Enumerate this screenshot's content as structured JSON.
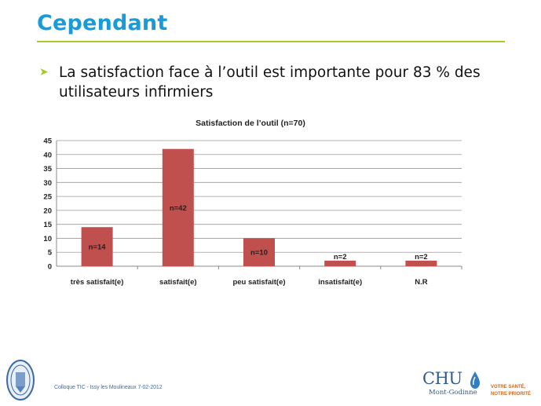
{
  "slide": {
    "title": "Cependant",
    "bullet": "La satisfaction face à l’outil est importante pour 83 % des utilisateurs infirmiers"
  },
  "chart_data": {
    "type": "bar",
    "title": "Satisfaction de l’outil (n=70)",
    "categories": [
      "très satisfait(e)",
      "satisfait(e)",
      "peu satisfait(e)",
      "insatisfait(e)",
      "N.R"
    ],
    "values": [
      14,
      42,
      10,
      2,
      2
    ],
    "data_labels": [
      "n=14",
      "n=42",
      "n=10",
      "n=2",
      "n=2"
    ],
    "ylim": [
      0,
      45
    ],
    "yticks": [
      0,
      5,
      10,
      15,
      20,
      25,
      30,
      35,
      40,
      45
    ],
    "grid": true,
    "legend": "none",
    "bar_color": "#c0504d"
  },
  "footer": {
    "text": "Colloque TIC - Issy les Moulineaux 7-02-2012",
    "logo_name": "CHU",
    "logo_subtitle": "Mont-Godinne",
    "tagline_line1": "VOTRE SANTÉ,",
    "tagline_line2": "NOTRE PRIORITÉ"
  },
  "colors": {
    "title": "#1a9bd7",
    "accent": "#a8c92a",
    "bar": "#c0504d",
    "logo": "#2f5c8a",
    "tagline": "#cc6a1f"
  }
}
